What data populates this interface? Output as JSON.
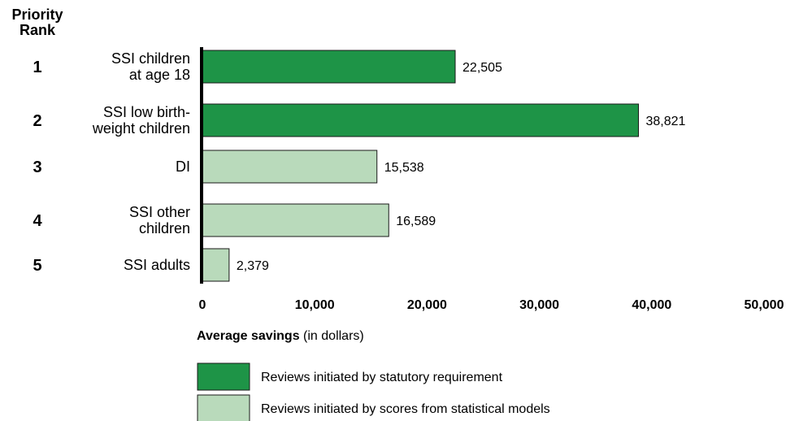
{
  "chart_data": {
    "type": "bar",
    "orientation": "horizontal",
    "rank_header": [
      "Priority",
      "Rank"
    ],
    "categories": [
      {
        "rank": "1",
        "label": [
          "SSI children",
          "at age 18"
        ],
        "value": 22505,
        "value_label": "22,505",
        "group": "statutory"
      },
      {
        "rank": "2",
        "label": [
          "SSI low birth-",
          "weight children"
        ],
        "value": 38821,
        "value_label": "38,821",
        "group": "statutory"
      },
      {
        "rank": "3",
        "label": [
          "DI"
        ],
        "value": 15538,
        "value_label": "15,538",
        "group": "models"
      },
      {
        "rank": "4",
        "label": [
          "SSI other",
          "children"
        ],
        "value": 16589,
        "value_label": "16,589",
        "group": "models"
      },
      {
        "rank": "5",
        "label": [
          "SSI adults"
        ],
        "value": 2379,
        "value_label": "2,379",
        "group": "models"
      }
    ],
    "xlim": [
      0,
      50000
    ],
    "xticks": [
      {
        "value": 0,
        "label": "0"
      },
      {
        "value": 10000,
        "label": "10,000"
      },
      {
        "value": 20000,
        "label": "20,000"
      },
      {
        "value": 30000,
        "label": "30,000"
      },
      {
        "value": 40000,
        "label": "40,000"
      },
      {
        "value": 50000,
        "label": "50,000"
      }
    ],
    "xlabel": {
      "bold": "Average savings",
      "normal": " (in dollars)"
    },
    "grid": false,
    "legend_position": "bottom",
    "legend": [
      {
        "key": "statutory",
        "label": "Reviews initiated by statutory requirement",
        "color": "#1e9447"
      },
      {
        "key": "models",
        "label": "Reviews initiated by scores from statistical models",
        "color": "#b9dabb"
      }
    ]
  }
}
